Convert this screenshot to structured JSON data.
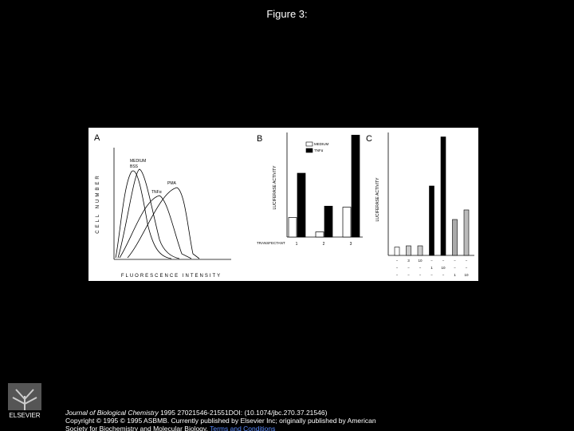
{
  "header": {
    "title": "Figure 3:"
  },
  "figure": {
    "panel_a": {
      "label": "A",
      "y_label": "CELL NUMBER",
      "x_label": "FLUORESCENCE INTENSITY",
      "curve_labels": [
        "MEDIUM",
        "BSS",
        "TNFα",
        "PMA"
      ]
    },
    "panel_b": {
      "label": "B",
      "y_label": "LUCIFERASE ACTIVITY",
      "x_label": "TRANSFECTANT",
      "categories": [
        "1",
        "2",
        "3"
      ],
      "ylim": [
        0,
        100
      ],
      "series": [
        {
          "name": "MEDIUM",
          "color": "#ffffff",
          "values": [
            19,
            5,
            29
          ]
        },
        {
          "name": "TNFα",
          "color": "#000000",
          "values": [
            62,
            30,
            99
          ]
        }
      ]
    },
    "panel_c": {
      "label": "C",
      "y_label": "LUCIFERASE ACTIVITY",
      "ylim": [
        0,
        100
      ],
      "values": [
        7,
        8,
        8,
        58,
        99,
        30,
        38
      ],
      "colors": [
        "#ffffff",
        "#cccccc",
        "#cccccc",
        "#000000",
        "#000000",
        "#aaaaaa",
        "#bbbbbb"
      ],
      "rows": [
        [
          "−",
          "3",
          "10",
          "−",
          "−",
          "−",
          "−"
        ],
        [
          "−",
          "−",
          "−",
          "1",
          "10",
          "−",
          "−"
        ],
        [
          "−",
          "−",
          "−",
          "−",
          "−",
          "1",
          "10"
        ]
      ]
    }
  },
  "citation": {
    "journal": "Journal of Biological Chemistry",
    "line1": " 1995 27021546-21551DOI: (10.1074/jbc.270.37.21546)",
    "line2": "Copyright © 1995 © 1995 ASBMB. Currently published by Elsevier Inc; originally published by American",
    "line3": "Society for Biochemistry and Molecular Biology. ",
    "link": "Terms and Conditions"
  },
  "logo": {
    "text": "ELSEVIER"
  }
}
